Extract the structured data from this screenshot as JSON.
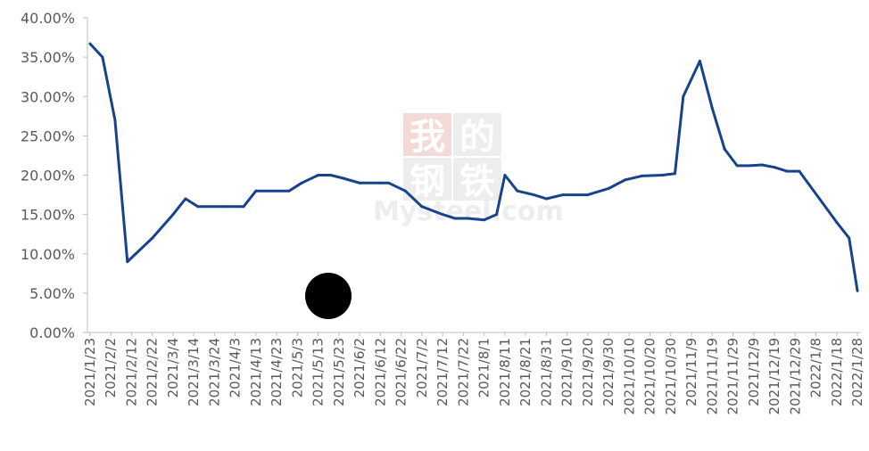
{
  "chart_data": {
    "type": "line",
    "title": "",
    "xlabel": "",
    "ylabel": "",
    "ylim": [
      0,
      40
    ],
    "grid": false,
    "legend": "none",
    "y_ticks": [
      "0.00%",
      "5.00%",
      "10.00%",
      "15.00%",
      "20.00%",
      "25.00%",
      "30.00%",
      "35.00%",
      "40.00%"
    ],
    "x_tick_labels": [
      "2021/1/23",
      "2021/2/2",
      "2021/2/12",
      "2021/2/22",
      "2021/3/4",
      "2021/3/14",
      "2021/3/24",
      "2021/4/3",
      "2021/4/13",
      "2021/4/23",
      "2021/5/3",
      "2021/5/13",
      "2021/5/23",
      "2021/6/2",
      "2021/6/12",
      "2021/6/22",
      "2021/7/2",
      "2021/7/12",
      "2021/7/22",
      "2021/8/1",
      "2021/8/11",
      "2021/8/21",
      "2021/8/31",
      "2021/9/10",
      "2021/9/20",
      "2021/9/30",
      "2021/10/10",
      "2021/10/20",
      "2021/10/30",
      "2021/11/9",
      "2021/11/19",
      "2021/11/29",
      "2021/12/9",
      "2021/12/19",
      "2021/12/29",
      "2022/1/8",
      "2022/1/18",
      "2022/1/28"
    ],
    "series": [
      {
        "color": "#17438a",
        "points": [
          [
            "2021/1/23",
            36.7
          ],
          [
            "2021/1/29",
            35.0
          ],
          [
            "2021/2/4",
            27.0
          ],
          [
            "2021/2/10",
            9.0
          ],
          [
            "2021/2/22",
            12.0
          ],
          [
            "2021/3/4",
            15.0
          ],
          [
            "2021/3/10",
            17.0
          ],
          [
            "2021/3/16",
            16.0
          ],
          [
            "2021/3/28",
            16.0
          ],
          [
            "2021/4/7",
            16.0
          ],
          [
            "2021/4/13",
            18.0
          ],
          [
            "2021/4/29",
            18.0
          ],
          [
            "2021/5/5",
            19.0
          ],
          [
            "2021/5/13",
            20.0
          ],
          [
            "2021/5/19",
            20.0
          ],
          [
            "2021/5/25",
            19.6
          ],
          [
            "2021/6/2",
            19.0
          ],
          [
            "2021/6/12",
            19.0
          ],
          [
            "2021/6/16",
            19.0
          ],
          [
            "2021/6/24",
            18.0
          ],
          [
            "2021/7/2",
            16.0
          ],
          [
            "2021/7/12",
            15.0
          ],
          [
            "2021/7/18",
            14.5
          ],
          [
            "2021/7/24",
            14.5
          ],
          [
            "2021/8/1",
            14.3
          ],
          [
            "2021/8/7",
            15.0
          ],
          [
            "2021/8/11",
            20.0
          ],
          [
            "2021/8/17",
            18.0
          ],
          [
            "2021/8/25",
            17.5
          ],
          [
            "2021/8/31",
            17.0
          ],
          [
            "2021/9/8",
            17.5
          ],
          [
            "2021/9/20",
            17.5
          ],
          [
            "2021/9/30",
            18.3
          ],
          [
            "2021/10/8",
            19.4
          ],
          [
            "2021/10/16",
            19.9
          ],
          [
            "2021/10/26",
            20.0
          ],
          [
            "2021/11/1",
            20.2
          ],
          [
            "2021/11/5",
            30.0
          ],
          [
            "2021/11/13",
            34.5
          ],
          [
            "2021/11/19",
            28.5
          ],
          [
            "2021/11/25",
            23.3
          ],
          [
            "2021/12/1",
            21.2
          ],
          [
            "2021/12/7",
            21.2
          ],
          [
            "2021/12/13",
            21.3
          ],
          [
            "2021/12/19",
            21.0
          ],
          [
            "2021/12/25",
            20.5
          ],
          [
            "2021/12/31",
            20.5
          ],
          [
            "2022/1/18",
            14.0
          ],
          [
            "2022/1/24",
            12.0
          ],
          [
            "2022/1/28",
            5.3
          ]
        ]
      }
    ]
  },
  "watermark": {
    "chars": [
      "我",
      "的",
      "钢",
      "铁"
    ],
    "latin": "Mysteel.com"
  },
  "overlay_marker": {
    "color": "#000000"
  }
}
